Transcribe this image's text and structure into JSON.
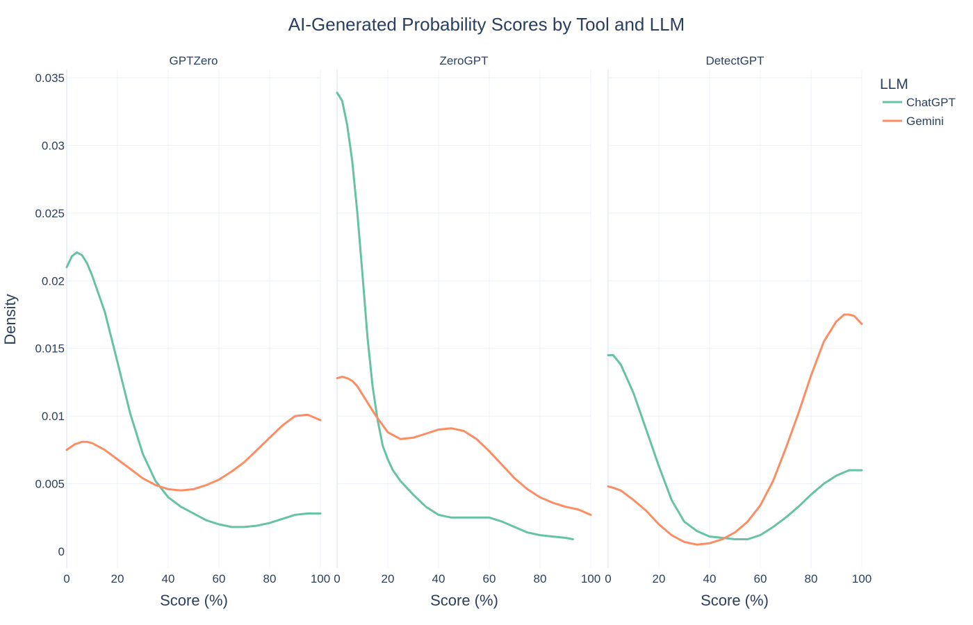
{
  "chart_data": {
    "type": "line",
    "title": "AI-Generated Probability Scores by Tool and LLM",
    "xlabel": "Score (%)",
    "ylabel": "Density",
    "xlim": [
      0,
      100
    ],
    "ylim": [
      0,
      0.035
    ],
    "x_ticks": [
      0,
      20,
      40,
      60,
      80,
      100
    ],
    "x_tick_labels": [
      "0",
      "20",
      "40",
      "60",
      "80",
      "100"
    ],
    "y_ticks": [
      0,
      0.005,
      0.01,
      0.015,
      0.02,
      0.025,
      0.03,
      0.035
    ],
    "y_tick_labels": [
      "0",
      "0.005",
      "0.01",
      "0.015",
      "0.02",
      "0.025",
      "0.03",
      "0.035"
    ],
    "grid": true,
    "legend": {
      "title": "LLM",
      "position": "top-right",
      "items": [
        {
          "name": "ChatGPT",
          "color": "#66c2a5"
        },
        {
          "name": "Gemini",
          "color": "#fc8d62"
        }
      ]
    },
    "panels": [
      {
        "name": "GPTZero",
        "series": [
          {
            "name": "ChatGPT",
            "color": "#66c2a5",
            "x": [
              0,
              2,
              4,
              6,
              8,
              10,
              15,
              20,
              25,
              30,
              35,
              40,
              45,
              50,
              55,
              60,
              65,
              70,
              75,
              80,
              85,
              90,
              95,
              100
            ],
            "y": [
              0.021,
              0.0218,
              0.0221,
              0.0219,
              0.0213,
              0.0204,
              0.0177,
              0.014,
              0.0102,
              0.0072,
              0.0052,
              0.004,
              0.0033,
              0.0028,
              0.0023,
              0.002,
              0.0018,
              0.0018,
              0.0019,
              0.0021,
              0.0024,
              0.0027,
              0.0028,
              0.0028
            ]
          },
          {
            "name": "Gemini",
            "color": "#fc8d62",
            "x": [
              0,
              3,
              6,
              8,
              10,
              15,
              20,
              25,
              30,
              35,
              40,
              45,
              50,
              55,
              60,
              65,
              70,
              75,
              80,
              85,
              90,
              95,
              100
            ],
            "y": [
              0.0075,
              0.0079,
              0.0081,
              0.0081,
              0.008,
              0.0075,
              0.0068,
              0.0061,
              0.0054,
              0.0049,
              0.0046,
              0.0045,
              0.0046,
              0.0049,
              0.0053,
              0.0059,
              0.0066,
              0.0075,
              0.0084,
              0.0093,
              0.01,
              0.0101,
              0.0097
            ]
          }
        ]
      },
      {
        "name": "ZeroGPT",
        "series": [
          {
            "name": "ChatGPT",
            "color": "#66c2a5",
            "x": [
              0,
              2,
              4,
              6,
              8,
              10,
              12,
              14,
              16,
              18,
              20,
              22,
              25,
              30,
              35,
              40,
              45,
              50,
              55,
              60,
              65,
              70,
              75,
              80,
              85,
              90,
              93
            ],
            "y": [
              0.0339,
              0.0333,
              0.0315,
              0.0288,
              0.025,
              0.0205,
              0.0158,
              0.0122,
              0.0097,
              0.0078,
              0.0068,
              0.006,
              0.0052,
              0.0042,
              0.0033,
              0.0027,
              0.0025,
              0.0025,
              0.0025,
              0.0025,
              0.0022,
              0.0018,
              0.0014,
              0.0012,
              0.0011,
              0.001,
              0.0009
            ]
          },
          {
            "name": "Gemini",
            "color": "#fc8d62",
            "x": [
              0,
              2,
              4,
              6,
              8,
              10,
              15,
              20,
              25,
              30,
              35,
              40,
              45,
              50,
              55,
              60,
              65,
              70,
              75,
              80,
              85,
              90,
              95,
              100
            ],
            "y": [
              0.0128,
              0.0129,
              0.0128,
              0.0126,
              0.0122,
              0.0116,
              0.0101,
              0.0088,
              0.0083,
              0.0084,
              0.0087,
              0.009,
              0.0091,
              0.0089,
              0.0083,
              0.0074,
              0.0064,
              0.0054,
              0.0046,
              0.004,
              0.0036,
              0.0033,
              0.0031,
              0.0027
            ]
          }
        ]
      },
      {
        "name": "DetectGPT",
        "series": [
          {
            "name": "ChatGPT",
            "color": "#66c2a5",
            "x": [
              0,
              2,
              5,
              10,
              15,
              20,
              25,
              30,
              35,
              40,
              45,
              50,
              55,
              60,
              65,
              70,
              75,
              80,
              85,
              90,
              95,
              100
            ],
            "y": [
              0.0145,
              0.0145,
              0.0138,
              0.0117,
              0.009,
              0.0063,
              0.0038,
              0.0022,
              0.0015,
              0.0011,
              0.001,
              0.0009,
              0.0009,
              0.0012,
              0.0018,
              0.0025,
              0.0033,
              0.0042,
              0.005,
              0.0056,
              0.006,
              0.006
            ]
          },
          {
            "name": "Gemini",
            "color": "#fc8d62",
            "x": [
              0,
              2,
              5,
              10,
              15,
              20,
              25,
              30,
              35,
              40,
              45,
              50,
              55,
              60,
              65,
              70,
              75,
              80,
              85,
              90,
              93,
              95,
              97,
              100
            ],
            "y": [
              0.0048,
              0.0047,
              0.0045,
              0.0038,
              0.003,
              0.002,
              0.0012,
              0.0007,
              0.0005,
              0.0006,
              0.0009,
              0.0014,
              0.0022,
              0.0034,
              0.0052,
              0.0076,
              0.0102,
              0.013,
              0.0155,
              0.017,
              0.0175,
              0.0175,
              0.0174,
              0.0168
            ]
          }
        ]
      }
    ]
  }
}
